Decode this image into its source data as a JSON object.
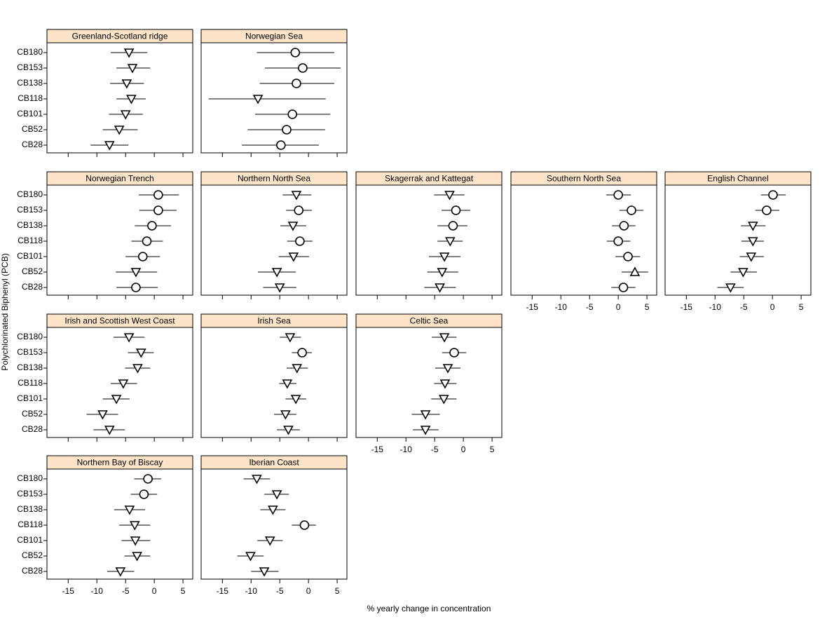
{
  "x_label": "% yearly change in concentration",
  "y_label": "Polychlorinated Biphenyl (PCB)",
  "categories": [
    "CB180",
    "CB153",
    "CB138",
    "CB118",
    "CB101",
    "CB52",
    "CB28"
  ],
  "chart_data": [
    {
      "type": "dotplot",
      "title": "Greenland-Scotland ridge",
      "xlim": [
        -18.7,
        6.7
      ],
      "xticks": [
        -15,
        -10,
        -5,
        0,
        5
      ],
      "values": [
        -4.4,
        -3.8,
        -4.8,
        -4.0,
        -5.0,
        -6.1,
        -7.8
      ],
      "lower": [
        -7.6,
        -6.6,
        -7.7,
        -6.6,
        -7.9,
        -9.0,
        -11.1
      ],
      "upper": [
        -1.2,
        -0.7,
        -1.8,
        -1.5,
        -2.0,
        -2.9,
        -4.5
      ],
      "markers": [
        "down",
        "down",
        "down",
        "down",
        "down",
        "down",
        "down"
      ]
    },
    {
      "type": "dotplot",
      "title": "Norwegian Sea",
      "xlim": [
        -18.7,
        6.7
      ],
      "xticks": [
        -15,
        -10,
        -5,
        0,
        5
      ],
      "values": [
        -2.3,
        -1.0,
        -2.1,
        -8.8,
        -2.8,
        -3.8,
        -4.8
      ],
      "lower": [
        -9.0,
        -7.6,
        -8.5,
        -17.4,
        -9.3,
        -10.6,
        -11.6
      ],
      "upper": [
        4.5,
        5.6,
        4.5,
        3.0,
        3.8,
        2.9,
        1.8
      ],
      "markers": [
        "circle",
        "circle",
        "circle",
        "down",
        "circle",
        "circle",
        "circle"
      ]
    },
    {
      "type": "dotplot",
      "title": "Norwegian Trench",
      "xlim": [
        -18.7,
        6.7
      ],
      "xticks": [
        -15,
        -10,
        -5,
        0,
        5
      ],
      "values": [
        0.7,
        0.7,
        -0.4,
        -1.3,
        -2.0,
        -3.2,
        -3.2
      ],
      "lower": [
        -2.7,
        -2.6,
        -3.4,
        -4.0,
        -5.0,
        -6.7,
        -6.6
      ],
      "upper": [
        4.3,
        3.9,
        2.9,
        1.5,
        1.0,
        0.5,
        0.6
      ],
      "markers": [
        "circle",
        "circle",
        "circle",
        "circle",
        "circle",
        "down",
        "circle"
      ]
    },
    {
      "type": "dotplot",
      "title": "Northern North Sea",
      "xlim": [
        -18.7,
        6.7
      ],
      "xticks": [
        -15,
        -10,
        -5,
        0,
        5
      ],
      "values": [
        -2.1,
        -1.7,
        -2.7,
        -1.5,
        -2.6,
        -5.5,
        -5.0
      ],
      "lower": [
        -4.5,
        -3.9,
        -4.9,
        -3.7,
        -5.2,
        -8.8,
        -7.9
      ],
      "upper": [
        0.5,
        0.6,
        -0.4,
        0.7,
        0.1,
        -2.2,
        -2.1
      ],
      "markers": [
        "down",
        "circle",
        "down",
        "circle",
        "down",
        "down",
        "down"
      ]
    },
    {
      "type": "dotplot",
      "title": "Skagerrak and Kattegat",
      "xlim": [
        -18.7,
        6.7
      ],
      "xticks": [
        -15,
        -10,
        -5,
        0,
        5
      ],
      "values": [
        -2.4,
        -1.3,
        -1.8,
        -2.3,
        -3.3,
        -3.7,
        -4.1
      ],
      "lower": [
        -5.1,
        -3.8,
        -4.5,
        -4.5,
        -6.0,
        -6.3,
        -6.8
      ],
      "upper": [
        0.2,
        1.2,
        0.7,
        -0.1,
        -0.5,
        -0.9,
        -1.3
      ],
      "markers": [
        "down",
        "circle",
        "circle",
        "down",
        "down",
        "down",
        "down"
      ]
    },
    {
      "type": "dotplot",
      "title": "Southern North Sea",
      "xlim": [
        -18.7,
        6.7
      ],
      "xticks": [
        -15,
        -10,
        -5,
        0,
        5
      ],
      "values": [
        0.0,
        2.3,
        1.0,
        0.0,
        1.7,
        2.9,
        0.9
      ],
      "lower": [
        -2.1,
        0.2,
        -1.1,
        -2.0,
        -0.5,
        0.6,
        -1.2
      ],
      "upper": [
        2.2,
        4.4,
        3.0,
        2.1,
        3.8,
        5.2,
        3.0
      ],
      "markers": [
        "circle",
        "circle",
        "circle",
        "circle",
        "circle",
        "up",
        "circle"
      ]
    },
    {
      "type": "dotplot",
      "title": "English Channel",
      "xlim": [
        -18.7,
        6.7
      ],
      "xticks": [
        -15,
        -10,
        -5,
        0,
        5
      ],
      "values": [
        0.1,
        -1.0,
        -3.4,
        -3.4,
        -3.7,
        -5.1,
        -7.3
      ],
      "lower": [
        -2.0,
        -3.0,
        -5.5,
        -5.4,
        -5.7,
        -7.3,
        -9.6
      ],
      "upper": [
        2.3,
        1.2,
        -1.2,
        -1.5,
        -1.5,
        -2.7,
        -5.0
      ],
      "markers": [
        "circle",
        "circle",
        "down",
        "down",
        "down",
        "down",
        "down"
      ]
    },
    {
      "type": "dotplot",
      "title": "Irish and Scottish West Coast",
      "xlim": [
        -18.7,
        6.7
      ],
      "xticks": [
        -15,
        -10,
        -5,
        0,
        5
      ],
      "values": [
        -4.4,
        -2.3,
        -2.9,
        -5.4,
        -6.6,
        -9.0,
        -7.8
      ],
      "lower": [
        -7.1,
        -4.6,
        -5.1,
        -7.6,
        -9.0,
        -11.8,
        -10.6
      ],
      "upper": [
        -1.7,
        -0.1,
        -0.7,
        -3.0,
        -4.3,
        -6.3,
        -5.1
      ],
      "markers": [
        "down",
        "down",
        "down",
        "down",
        "down",
        "down",
        "down"
      ]
    },
    {
      "type": "dotplot",
      "title": "Irish Sea",
      "xlim": [
        -18.7,
        6.7
      ],
      "xticks": [
        -15,
        -10,
        -5,
        0,
        5
      ],
      "values": [
        -3.2,
        -1.1,
        -2.0,
        -3.7,
        -2.2,
        -4.0,
        -3.5
      ],
      "lower": [
        -5.0,
        -2.9,
        -3.8,
        -5.1,
        -4.0,
        -6.0,
        -5.5
      ],
      "upper": [
        -1.3,
        0.6,
        -0.1,
        -2.1,
        -0.4,
        -2.1,
        -1.5
      ],
      "markers": [
        "down",
        "circle",
        "down",
        "down",
        "down",
        "down",
        "down"
      ]
    },
    {
      "type": "dotplot",
      "title": "Celtic Sea",
      "xlim": [
        -18.7,
        6.7
      ],
      "xticks": [
        -15,
        -10,
        -5,
        0,
        5
      ],
      "values": [
        -3.3,
        -1.6,
        -2.7,
        -3.2,
        -3.4,
        -6.6,
        -6.6
      ],
      "lower": [
        -5.5,
        -3.7,
        -4.9,
        -5.1,
        -5.6,
        -9.0,
        -8.8
      ],
      "upper": [
        -1.2,
        0.5,
        -0.5,
        -1.2,
        -1.2,
        -4.1,
        -4.3
      ],
      "markers": [
        "down",
        "circle",
        "down",
        "down",
        "down",
        "down",
        "down"
      ]
    },
    {
      "type": "dotplot",
      "title": "Northern Bay of Biscay",
      "xlim": [
        -18.7,
        6.7
      ],
      "xticks": [
        -15,
        -10,
        -5,
        0,
        5
      ],
      "values": [
        -1.1,
        -1.8,
        -4.3,
        -3.4,
        -3.3,
        -3.0,
        -5.9
      ],
      "lower": [
        -3.5,
        -4.1,
        -7.0,
        -6.1,
        -5.7,
        -5.2,
        -8.2
      ],
      "upper": [
        1.2,
        0.5,
        -1.6,
        -0.7,
        -0.7,
        -0.7,
        -3.5
      ],
      "markers": [
        "circle",
        "circle",
        "down",
        "down",
        "down",
        "down",
        "down"
      ]
    },
    {
      "type": "dotplot",
      "title": "Iberian Coast",
      "xlim": [
        -18.7,
        6.7
      ],
      "xticks": [
        -15,
        -10,
        -5,
        0,
        5
      ],
      "values": [
        -9.0,
        -5.5,
        -6.2,
        -0.7,
        -6.7,
        -10.1,
        -7.7
      ],
      "lower": [
        -11.3,
        -7.7,
        -8.4,
        -2.9,
        -8.9,
        -12.4,
        -10.0
      ],
      "upper": [
        -6.7,
        -3.4,
        -4.0,
        1.3,
        -4.5,
        -7.8,
        -5.2
      ],
      "markers": [
        "down",
        "down",
        "down",
        "circle",
        "down",
        "down",
        "down"
      ]
    }
  ]
}
